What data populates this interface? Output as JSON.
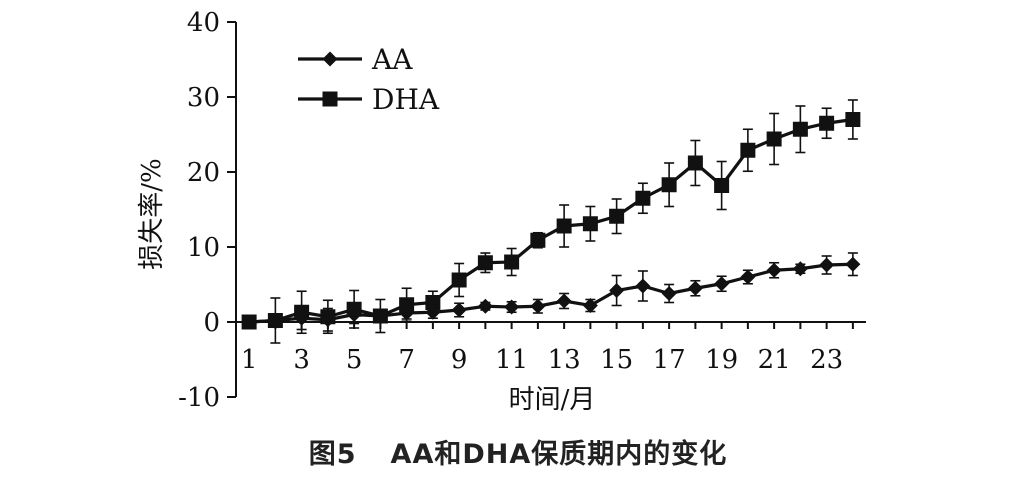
{
  "chart_data": {
    "type": "line",
    "title": "",
    "xlabel": "时间/月",
    "ylabel": "损失率/%",
    "xlim": [
      0.5,
      24.5
    ],
    "ylim": [
      -10,
      40
    ],
    "x": [
      1,
      2,
      3,
      4,
      5,
      6,
      7,
      8,
      9,
      10,
      11,
      12,
      13,
      14,
      15,
      16,
      17,
      18,
      19,
      20,
      21,
      22,
      23,
      24
    ],
    "x_ticks": [
      1,
      3,
      5,
      7,
      9,
      11,
      13,
      15,
      17,
      19,
      21,
      23
    ],
    "x_tick_labels": [
      "1",
      "3",
      "5",
      "7",
      "9",
      "11",
      "13",
      "15",
      "17",
      "19",
      "21",
      "23"
    ],
    "y_ticks": [
      -10,
      0,
      10,
      20,
      30,
      40
    ],
    "y_tick_labels": [
      "-10",
      "0",
      "10",
      "20",
      "30",
      "40"
    ],
    "grid": false,
    "legend": "top-left",
    "series": [
      {
        "name": "AA",
        "marker": "diamond",
        "color": "#111111",
        "values": [
          0,
          0.2,
          0.5,
          0.3,
          1.0,
          0.8,
          1.2,
          1.3,
          1.6,
          2.1,
          2.0,
          2.1,
          2.8,
          2.2,
          4.2,
          4.8,
          3.8,
          4.5,
          5.1,
          6.0,
          6.9,
          7.1,
          7.6,
          7.7
        ],
        "errors": [
          0,
          0.6,
          1.5,
          1.5,
          1.2,
          0.8,
          0.8,
          0.8,
          0.9,
          0.5,
          0.7,
          0.9,
          1.0,
          0.8,
          2.0,
          2.0,
          1.2,
          1.0,
          1.0,
          0.9,
          1.0,
          0.6,
          1.2,
          1.5
        ]
      },
      {
        "name": "DHA",
        "marker": "square",
        "color": "#111111",
        "values": [
          0,
          0.2,
          1.3,
          0.7,
          1.7,
          0.8,
          2.3,
          2.6,
          5.6,
          7.9,
          8.0,
          10.9,
          12.8,
          13.1,
          14.1,
          16.5,
          18.3,
          21.2,
          18.2,
          22.9,
          24.4,
          25.7,
          26.5,
          27.0
        ],
        "errors": [
          0,
          3.0,
          2.8,
          2.2,
          2.5,
          2.2,
          2.2,
          1.5,
          2.2,
          1.3,
          1.8,
          1.0,
          2.8,
          2.3,
          2.3,
          2.0,
          2.9,
          3.0,
          3.2,
          2.8,
          3.4,
          3.1,
          2.0,
          2.6
        ]
      }
    ]
  },
  "caption": {
    "figure_number": "图5",
    "text": "AA和DHA保质期内的变化"
  }
}
